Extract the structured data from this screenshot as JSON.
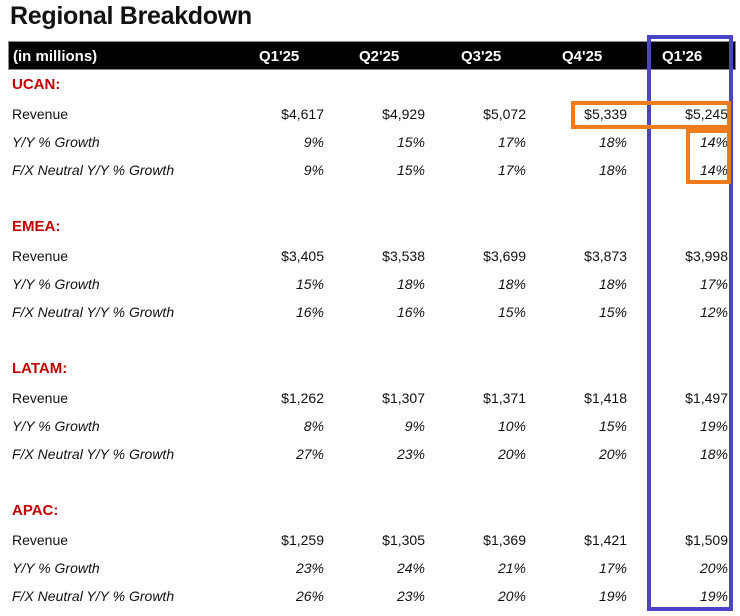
{
  "title": "Regional Breakdown",
  "header": [
    "(in millions)",
    "Q1'25",
    "Q2'25",
    "Q3'25",
    "Q4'25",
    "Q1'26"
  ],
  "colors": {
    "section": "#c00000",
    "blue_box": "#4b44c8",
    "orange_box": "#f07a1c"
  },
  "regions": [
    {
      "name": "UCAN:",
      "rows": [
        {
          "label": "Revenue",
          "values": [
            "$4,617",
            "$4,929",
            "$5,072",
            "$5,339",
            "$5,245"
          ]
        },
        {
          "label": "Y/Y % Growth",
          "values": [
            "9%",
            "15%",
            "17%",
            "18%",
            "14%"
          ]
        },
        {
          "label": "F/X Neutral Y/Y % Growth",
          "values": [
            "9%",
            "15%",
            "17%",
            "18%",
            "14%"
          ]
        }
      ]
    },
    {
      "name": "EMEA:",
      "rows": [
        {
          "label": "Revenue",
          "values": [
            "$3,405",
            "$3,538",
            "$3,699",
            "$3,873",
            "$3,998"
          ]
        },
        {
          "label": "Y/Y % Growth",
          "values": [
            "15%",
            "18%",
            "18%",
            "18%",
            "17%"
          ]
        },
        {
          "label": "F/X Neutral Y/Y % Growth",
          "values": [
            "16%",
            "16%",
            "15%",
            "15%",
            "12%"
          ]
        }
      ]
    },
    {
      "name": "LATAM:",
      "rows": [
        {
          "label": "Revenue",
          "values": [
            "$1,262",
            "$1,307",
            "$1,371",
            "$1,418",
            "$1,497"
          ]
        },
        {
          "label": "Y/Y % Growth",
          "values": [
            "8%",
            "9%",
            "10%",
            "15%",
            "19%"
          ]
        },
        {
          "label": "F/X Neutral Y/Y % Growth",
          "values": [
            "27%",
            "23%",
            "20%",
            "20%",
            "18%"
          ]
        }
      ]
    },
    {
      "name": "APAC:",
      "rows": [
        {
          "label": "Revenue",
          "values": [
            "$1,259",
            "$1,305",
            "$1,369",
            "$1,421",
            "$1,509"
          ]
        },
        {
          "label": "Y/Y % Growth",
          "values": [
            "23%",
            "24%",
            "21%",
            "17%",
            "20%"
          ]
        },
        {
          "label": "F/X Neutral Y/Y % Growth",
          "values": [
            "26%",
            "23%",
            "20%",
            "19%",
            "19%"
          ]
        }
      ]
    }
  ]
}
